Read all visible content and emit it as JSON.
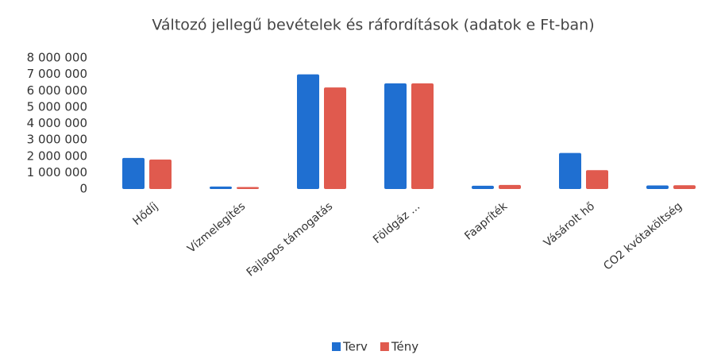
{
  "chart_data": {
    "type": "bar",
    "title": "Változó jellegű bevételek és ráfordítások (adatok e Ft-ban)",
    "categories": [
      "Hődíj",
      "Vízmelegítés",
      "Fajlagos támogatás",
      "Földgáz ...",
      "Faapríték",
      "Vásárolt hő",
      "CO2 kvótaköltség"
    ],
    "series": [
      {
        "name": "Terv",
        "color": "#1f6fd1",
        "values": [
          1900000,
          150000,
          7000000,
          6450000,
          200000,
          2200000,
          220000
        ]
      },
      {
        "name": "Tény",
        "color": "#e05a4e",
        "values": [
          1800000,
          120000,
          6200000,
          6450000,
          250000,
          1150000,
          230000
        ]
      }
    ],
    "ylim": [
      0,
      8000000
    ],
    "yticks": [
      0,
      {
        "value": 1000000,
        "label": "1 000 000"
      },
      {
        "value": 2000000,
        "label": "2 000 000"
      },
      {
        "value": 3000000,
        "label": "3 000 000"
      },
      {
        "value": 4000000,
        "label": "4 000 000"
      },
      {
        "value": 5000000,
        "label": "5 000 000"
      },
      {
        "value": 6000000,
        "label": "6 000 000"
      },
      {
        "value": 7000000,
        "label": "7 000 000"
      },
      {
        "value": 8000000,
        "label": "8 000 000"
      }
    ],
    "grid": false,
    "legend": "bottom"
  }
}
